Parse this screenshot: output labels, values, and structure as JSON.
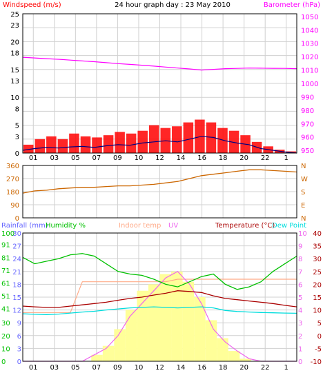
{
  "header": {
    "left_label": "Windspeed (m/s)",
    "title": "24 hour graph day : 23 May 2010",
    "right_label": "Barometer (hPa)"
  },
  "colors": {
    "frame": "#000000",
    "grid": "#d0d0d0",
    "day_axis": "#c8c8ff",
    "windspeed": "#000080",
    "gust": "#ff0000",
    "barometer": "#ff00ff",
    "direction": "#cc6600",
    "humidity": "#00c000",
    "solar": "#ffff99",
    "indoor_temp": "#ffaa88",
    "uv": "#ee66ee",
    "temperature": "#aa0000",
    "dew_point": "#00dddd",
    "rainfall": "#6666ff",
    "rain_bar": "#00aaaa",
    "tick_text": "#000000"
  },
  "chart_data": [
    {
      "type": "line",
      "panel": "wind_pressure",
      "x_labels": [
        "01",
        "03",
        "05",
        "07",
        "09",
        "10",
        "12",
        "14",
        "16",
        "18",
        "20",
        "22",
        "1"
      ],
      "left_axis": {
        "label": "Windspeed (m/s)",
        "ticks": [
          0,
          3,
          5,
          8,
          10,
          13,
          15,
          18,
          20,
          23,
          25
        ],
        "range": [
          0,
          25
        ]
      },
      "right_axis": {
        "label": "Barometer (hPa)",
        "ticks": [
          950,
          960,
          970,
          980,
          990,
          1000,
          1010,
          1020,
          1030,
          1040,
          1050
        ],
        "range": [
          948,
          1052
        ]
      },
      "series": [
        {
          "name": "Windspeed (m/s)",
          "values": [
            0.5,
            0.8,
            1.0,
            0.9,
            1.1,
            1.2,
            1.0,
            1.3,
            1.5,
            1.4,
            1.8,
            2.0,
            2.2,
            2.0,
            2.5,
            3.0,
            2.8,
            2.2,
            1.8,
            1.5,
            0.8,
            0.5,
            0.2,
            0.0
          ]
        },
        {
          "name": "Gust",
          "values": [
            1.5,
            2.5,
            3.0,
            2.5,
            3.5,
            3.0,
            2.8,
            3.2,
            3.8,
            3.5,
            4.0,
            5.0,
            4.5,
            4.8,
            5.5,
            6.0,
            5.5,
            4.5,
            4.0,
            3.2,
            2.0,
            1.2,
            0.6,
            0.3
          ]
        },
        {
          "name": "Barometer (hPa)",
          "values": [
            1019.5,
            1019.0,
            1018.5,
            1018.0,
            1017.4,
            1016.8,
            1016.2,
            1015.5,
            1014.8,
            1014.2,
            1013.6,
            1012.9,
            1012.2,
            1011.5,
            1010.8,
            1010.0,
            1010.5,
            1011.0,
            1011.2,
            1011.5,
            1011.4,
            1011.3,
            1011.2,
            1011.0
          ]
        }
      ]
    },
    {
      "type": "line",
      "panel": "wind_direction",
      "left_axis": {
        "ticks": [
          0,
          90,
          180,
          270,
          360
        ],
        "range": [
          0,
          360
        ]
      },
      "right_axis": {
        "ticks": [
          "N",
          "W",
          "S",
          "E",
          "N"
        ]
      },
      "series": [
        {
          "name": "Direction",
          "values": [
            170,
            185,
            190,
            200,
            205,
            210,
            210,
            215,
            220,
            220,
            225,
            230,
            240,
            250,
            270,
            290,
            300,
            310,
            320,
            330,
            330,
            325,
            320,
            315
          ]
        }
      ]
    },
    {
      "type": "line",
      "panel": "temperature_humidity",
      "x_labels": [
        "01",
        "03",
        "05",
        "07",
        "09",
        "10",
        "12",
        "14",
        "16",
        "18",
        "20",
        "22",
        "1"
      ],
      "header_labels": [
        "Rainfall (mm)",
        "Humidity %",
        "Indoor temp",
        "UV",
        "Temperature (°C)",
        "Dew Point"
      ],
      "axis_rainfall": {
        "label": "Rainfall (mm)",
        "ticks": [
          0,
          3,
          6,
          9,
          12,
          15,
          18,
          21,
          24,
          27,
          30
        ],
        "range": [
          0,
          30
        ]
      },
      "axis_humidity": {
        "label": "Humidity %",
        "ticks": [
          0,
          10,
          20,
          30,
          41,
          51,
          61,
          71,
          81,
          91,
          100
        ],
        "range": [
          0,
          100
        ]
      },
      "axis_temperature": {
        "label": "Temperature (°C)",
        "ticks": [
          -10,
          -5,
          0,
          5,
          10,
          15,
          20,
          25,
          30,
          35,
          40
        ],
        "range": [
          -10,
          40
        ]
      },
      "axis_uv": {
        "label": "UV",
        "ticks": [
          0,
          1,
          2,
          3,
          4,
          5,
          6,
          7,
          8,
          9,
          10
        ],
        "range": [
          0,
          10
        ]
      },
      "series": [
        {
          "name": "Humidity %",
          "values": [
            81,
            76,
            78,
            80,
            83,
            84,
            82,
            76,
            70,
            68,
            67,
            64,
            60,
            58,
            62,
            66,
            68,
            60,
            56,
            58,
            62,
            70,
            76,
            82
          ]
        },
        {
          "name": "Indoor temp",
          "values": [
            9,
            9,
            9,
            9,
            9,
            21,
            21,
            21,
            21,
            21,
            21,
            21,
            21,
            22,
            22,
            22,
            22,
            22,
            22,
            22,
            22,
            22,
            22,
            22
          ]
        },
        {
          "name": "Temperature (°C)",
          "values": [
            11.5,
            11.2,
            11.0,
            11.0,
            11.5,
            12.0,
            12.5,
            13.0,
            13.8,
            14.5,
            15.0,
            15.8,
            16.5,
            17.5,
            17.2,
            16.8,
            15.5,
            14.5,
            14.0,
            13.5,
            13.0,
            12.5,
            11.8,
            11.2
          ]
        },
        {
          "name": "Dew Point",
          "values": [
            8.5,
            8.3,
            8.2,
            8.4,
            8.8,
            9.2,
            9.5,
            10.0,
            10.4,
            10.8,
            11.0,
            11.2,
            11.0,
            10.8,
            11.0,
            11.2,
            10.8,
            9.8,
            9.4,
            9.2,
            9.0,
            8.9,
            8.8,
            8.7
          ]
        },
        {
          "name": "UV",
          "values": [
            0,
            0,
            0,
            0,
            0,
            0,
            0.5,
            1.0,
            2.0,
            3.5,
            4.5,
            5.5,
            6.5,
            7.0,
            6.0,
            4.5,
            2.5,
            1.5,
            0.8,
            0.2,
            0,
            0,
            0,
            0
          ]
        },
        {
          "name": "Solar",
          "values": [
            0,
            0,
            0,
            0,
            0,
            0,
            0.5,
            1.2,
            2.5,
            4.0,
            5.5,
            6.0,
            6.8,
            7.0,
            6.2,
            5.0,
            3.2,
            1.8,
            0.8,
            0.2,
            0,
            0,
            0,
            0
          ]
        },
        {
          "name": "Rainfall (mm)",
          "values": [
            0,
            0,
            0,
            0,
            0,
            0,
            0,
            0,
            0,
            0,
            0,
            0,
            0,
            0,
            0,
            0,
            0,
            0,
            0,
            0,
            0,
            0,
            0,
            0
          ]
        }
      ]
    }
  ]
}
